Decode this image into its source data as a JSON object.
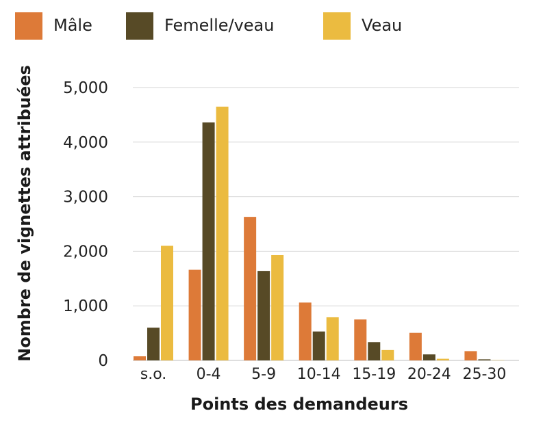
{
  "chart_data": {
    "type": "bar",
    "xlabel": "Points des demandeurs",
    "ylabel": "Nombre de vignettes attribuées",
    "categories": [
      "s.o.",
      "0-4",
      "5-9",
      "10-14",
      "15-19",
      "20-24",
      "25-30"
    ],
    "series": [
      {
        "name": "Mâle",
        "color": "#DD7A38",
        "values": [
          75,
          1660,
          2630,
          1060,
          750,
          505,
          170
        ]
      },
      {
        "name": "Femelle/veau",
        "color": "#574A26",
        "values": [
          600,
          4360,
          1640,
          530,
          335,
          110,
          20
        ]
      },
      {
        "name": "Veau",
        "color": "#EBBB40",
        "values": [
          2100,
          4650,
          1930,
          790,
          190,
          30,
          5
        ]
      }
    ],
    "ylim": [
      0,
      5000
    ],
    "yticks": [
      0,
      1000,
      2000,
      3000,
      4000,
      5000
    ],
    "ytick_labels": [
      "0",
      "1,000",
      "2,000",
      "3,000",
      "4,000",
      "5,000"
    ],
    "grid": true,
    "legend_position": "top-left"
  }
}
